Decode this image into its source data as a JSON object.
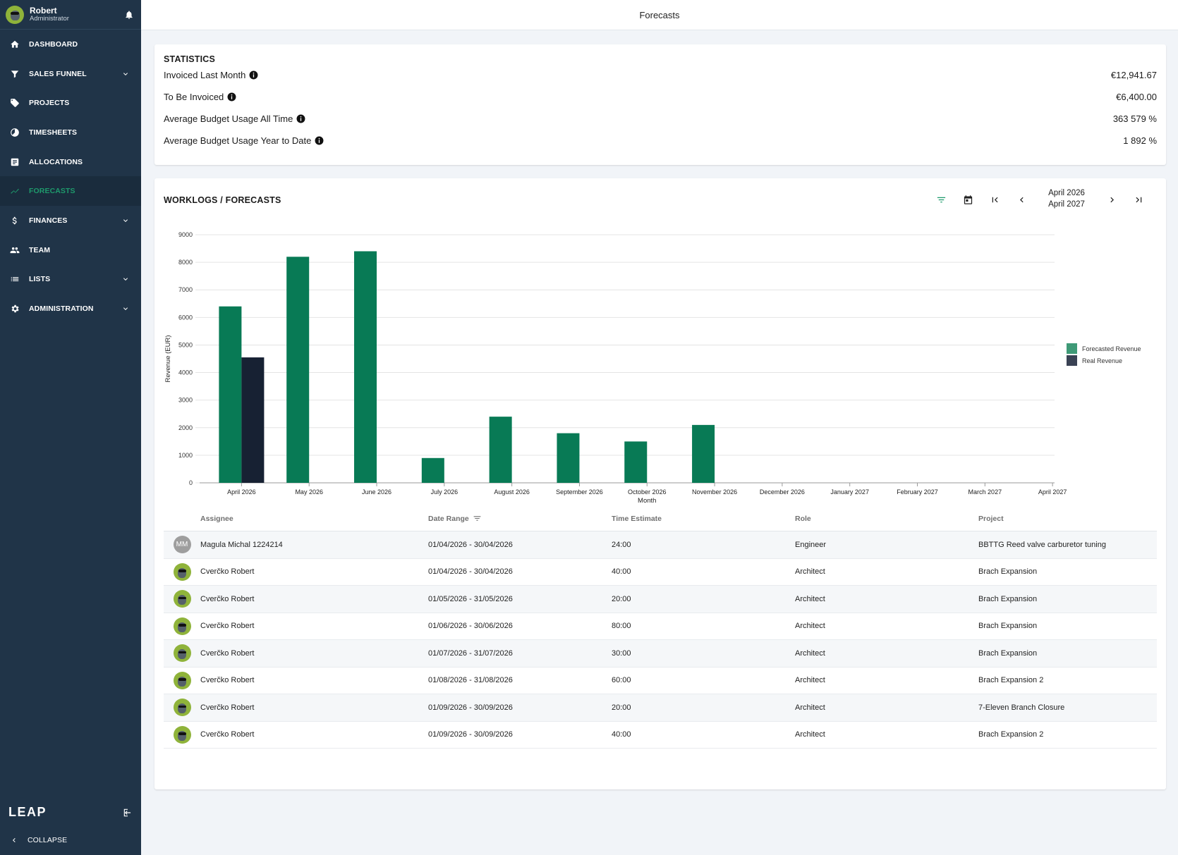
{
  "user": {
    "name": "Robert",
    "role": "Administrator"
  },
  "nav": [
    {
      "label": "DASHBOARD",
      "icon": "home-icon",
      "expandable": false,
      "active": false
    },
    {
      "label": "SALES FUNNEL",
      "icon": "filter-icon",
      "expandable": true,
      "active": false
    },
    {
      "label": "PROJECTS",
      "icon": "tag-icon",
      "expandable": false,
      "active": false
    },
    {
      "label": "TIMESHEETS",
      "icon": "clock-icon",
      "expandable": false,
      "active": false
    },
    {
      "label": "ALLOCATIONS",
      "icon": "allocation-icon",
      "expandable": false,
      "active": false
    },
    {
      "label": "FORECASTS",
      "icon": "trend-icon",
      "expandable": false,
      "active": true
    },
    {
      "label": "FINANCES",
      "icon": "dollar-icon",
      "expandable": true,
      "active": false
    },
    {
      "label": "TEAM",
      "icon": "people-icon",
      "expandable": false,
      "active": false
    },
    {
      "label": "LISTS",
      "icon": "list-icon",
      "expandable": true,
      "active": false
    },
    {
      "label": "ADMINISTRATION",
      "icon": "gear-icon",
      "expandable": true,
      "active": false
    }
  ],
  "logo": "LEAP",
  "collapse_label": "COLLAPSE",
  "page_title": "Forecasts",
  "statistics": {
    "title": "STATISTICS",
    "rows": [
      {
        "label": "Invoiced Last Month",
        "value": "€12,941.67"
      },
      {
        "label": "To Be Invoiced",
        "value": "€6,400.00"
      },
      {
        "label": "Average Budget Usage All Time",
        "value": "363 579 %"
      },
      {
        "label": "Average Budget Usage Year to Date",
        "value": "1 892 %"
      }
    ]
  },
  "worklogs": {
    "title": "WORKLOGS / FORECASTS",
    "range_start": "April 2026",
    "range_end": "April 2027"
  },
  "colors": {
    "forecast": "#087a55",
    "real": "#172133",
    "accent": "#1e9a6c",
    "sidebar": "#203448"
  },
  "chart_data": {
    "type": "bar",
    "categories": [
      "April 2026",
      "May 2026",
      "June 2026",
      "July 2026",
      "August 2026",
      "September 2026",
      "October 2026",
      "November 2026",
      "December 2026",
      "January 2027",
      "February 2027",
      "March 2027",
      "April 2027"
    ],
    "series": [
      {
        "name": "Forecasted Revenue",
        "values": [
          6400,
          8200,
          8400,
          900,
          2400,
          1800,
          1500,
          2100,
          0,
          0,
          0,
          0,
          0
        ]
      },
      {
        "name": "Real Revenue",
        "values": [
          4550,
          0,
          0,
          0,
          0,
          0,
          0,
          0,
          0,
          0,
          0,
          0,
          0
        ]
      }
    ],
    "yticks": [
      0,
      1000,
      2000,
      3000,
      4000,
      5000,
      6000,
      7000,
      8000,
      9000
    ],
    "ylim": [
      0,
      9000
    ],
    "xlabel": "Month",
    "ylabel": "Revenue (EUR)",
    "legend": "right",
    "grid": true
  },
  "table": {
    "headers": {
      "assignee": "Assignee",
      "date_range": "Date Range",
      "time_estimate": "Time Estimate",
      "role": "Role",
      "project": "Project"
    },
    "rows": [
      {
        "initials": "MM",
        "assignee": "Magula Michal 1224214",
        "date_range": "01/04/2026 - 30/04/2026",
        "time_estimate": "24:00",
        "role": "Engineer",
        "project": "BBTTG Reed valve carburetor tuning"
      },
      {
        "initials": "",
        "assignee": "Cverčko Robert",
        "date_range": "01/04/2026 - 30/04/2026",
        "time_estimate": "40:00",
        "role": "Architect",
        "project": "Brach Expansion"
      },
      {
        "initials": "",
        "assignee": "Cverčko Robert",
        "date_range": "01/05/2026 - 31/05/2026",
        "time_estimate": "20:00",
        "role": "Architect",
        "project": "Brach Expansion"
      },
      {
        "initials": "",
        "assignee": "Cverčko Robert",
        "date_range": "01/06/2026 - 30/06/2026",
        "time_estimate": "80:00",
        "role": "Architect",
        "project": "Brach Expansion"
      },
      {
        "initials": "",
        "assignee": "Cverčko Robert",
        "date_range": "01/07/2026 - 31/07/2026",
        "time_estimate": "30:00",
        "role": "Architect",
        "project": "Brach Expansion"
      },
      {
        "initials": "",
        "assignee": "Cverčko Robert",
        "date_range": "01/08/2026 - 31/08/2026",
        "time_estimate": "60:00",
        "role": "Architect",
        "project": "Brach Expansion 2"
      },
      {
        "initials": "",
        "assignee": "Cverčko Robert",
        "date_range": "01/09/2026 - 30/09/2026",
        "time_estimate": "20:00",
        "role": "Architect",
        "project": "7-Eleven Branch Closure"
      },
      {
        "initials": "",
        "assignee": "Cverčko Robert",
        "date_range": "01/09/2026 - 30/09/2026",
        "time_estimate": "40:00",
        "role": "Architect",
        "project": "Brach Expansion 2"
      }
    ]
  }
}
